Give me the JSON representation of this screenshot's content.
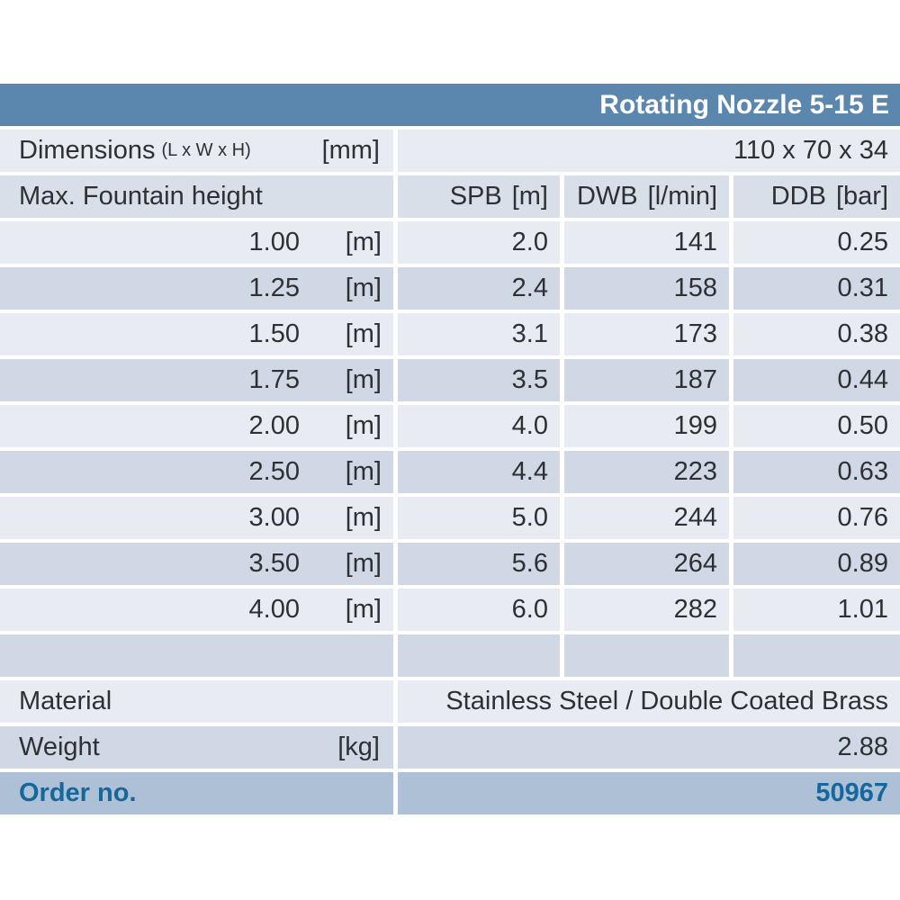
{
  "title": "Rotating Nozzle 5-15 E",
  "dimensions": {
    "label": "Dimensions",
    "sublabel": "(L x W x H)",
    "unit": "[mm]",
    "value": "110 x 70 x 34"
  },
  "table": {
    "header": {
      "col1": "Max. Fountain height",
      "col2_name": "SPB",
      "col2_unit": "[m]",
      "col3_name": "DWB",
      "col3_unit": "[l/min]",
      "col4_name": "DDB",
      "col4_unit": "[bar]"
    },
    "rows": [
      {
        "height": "1.00",
        "unit": "[m]",
        "spb": "2.0",
        "dwb": "141",
        "ddb": "0.25"
      },
      {
        "height": "1.25",
        "unit": "[m]",
        "spb": "2.4",
        "dwb": "158",
        "ddb": "0.31"
      },
      {
        "height": "1.50",
        "unit": "[m]",
        "spb": "3.1",
        "dwb": "173",
        "ddb": "0.38"
      },
      {
        "height": "1.75",
        "unit": "[m]",
        "spb": "3.5",
        "dwb": "187",
        "ddb": "0.44"
      },
      {
        "height": "2.00",
        "unit": "[m]",
        "spb": "4.0",
        "dwb": "199",
        "ddb": "0.50"
      },
      {
        "height": "2.50",
        "unit": "[m]",
        "spb": "4.4",
        "dwb": "223",
        "ddb": "0.63"
      },
      {
        "height": "3.00",
        "unit": "[m]",
        "spb": "5.0",
        "dwb": "244",
        "ddb": "0.76"
      },
      {
        "height": "3.50",
        "unit": "[m]",
        "spb": "5.6",
        "dwb": "264",
        "ddb": "0.89"
      },
      {
        "height": "4.00",
        "unit": "[m]",
        "spb": "6.0",
        "dwb": "282",
        "ddb": "1.01"
      }
    ]
  },
  "material": {
    "label": "Material",
    "value": "Stainless Steel / Double Coated Brass"
  },
  "weight": {
    "label": "Weight",
    "unit": "[kg]",
    "value": "2.88"
  },
  "order": {
    "label": "Order no.",
    "value": "50967"
  },
  "colors": {
    "title_bar": "#5b86ad",
    "row_light": "#e8ecf2",
    "row_dark": "#cfd8e4",
    "header_row": "#d8dfe9",
    "order_row": "#aec0d5",
    "order_text": "#15689e",
    "body_text": "#2f3033"
  }
}
